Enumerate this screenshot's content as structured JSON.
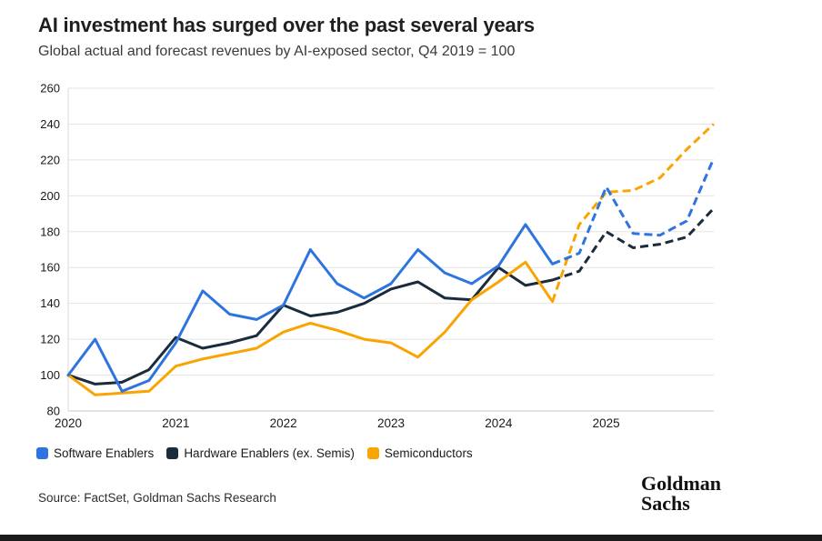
{
  "header": {
    "title": "AI investment has surged over the past several years",
    "subtitle": "Global actual and forecast revenues by AI-exposed sector, Q4 2019 = 100"
  },
  "chart_data": {
    "type": "line",
    "title": "AI investment has surged over the past several years",
    "subtitle": "Global actual and forecast revenues by AI-exposed sector, Q4 2019 = 100",
    "x_labels": [
      "2020 Q1",
      "2020 Q2",
      "2020 Q3",
      "2020 Q4",
      "2021 Q1",
      "2021 Q2",
      "2021 Q3",
      "2021 Q4",
      "2022 Q1",
      "2022 Q2",
      "2022 Q3",
      "2022 Q4",
      "2023 Q1",
      "2023 Q2",
      "2023 Q3",
      "2023 Q4",
      "2024 Q1",
      "2024 Q2",
      "2024 Q3",
      "2024 Q4",
      "2025 Q1",
      "2025 Q2",
      "2025 Q3",
      "2025 Q4",
      "2026 Q1"
    ],
    "x_axis_tick_labels": [
      "2020",
      "2021",
      "2022",
      "2023",
      "2024",
      "2025"
    ],
    "ylim": [
      80,
      260
    ],
    "ytick_step": 20,
    "yticks": [
      80,
      100,
      120,
      140,
      160,
      180,
      200,
      220,
      240,
      260
    ],
    "grid": "horizontal",
    "legend_position": "bottom-left",
    "forecast_start_index": 18,
    "forecast_style": "dashed segments after 2024 Q3 are forecasts",
    "series": [
      {
        "name": "Software Enablers",
        "color": "#2E74E0",
        "values": [
          100,
          120,
          91,
          97,
          118,
          147,
          134,
          131,
          139,
          170,
          151,
          143,
          151,
          170,
          157,
          151,
          161,
          184,
          162,
          168,
          205,
          179,
          178,
          186,
          221
        ]
      },
      {
        "name": "Hardware Enablers (ex. Semis)",
        "color": "#1A2B3C",
        "values": [
          100,
          95,
          96,
          103,
          121,
          115,
          118,
          122,
          139,
          133,
          135,
          140,
          148,
          152,
          143,
          142,
          160,
          150,
          153,
          158,
          180,
          171,
          173,
          177,
          193
        ]
      },
      {
        "name": "Semiconductors",
        "color": "#F9A400",
        "values": [
          100,
          89,
          90,
          91,
          105,
          109,
          112,
          115,
          124,
          129,
          125,
          120,
          118,
          110,
          124,
          142,
          152,
          163,
          141,
          184,
          202,
          203,
          210,
          226,
          240
        ]
      }
    ],
    "axis_colors": {
      "gridline": "#e4e4e4",
      "baseline": "#c9c9c9",
      "tick_label": "#1a1a1a"
    }
  },
  "footer": {
    "source": "Source: FactSet, Goldman Sachs Research",
    "logo_line1": "Goldman",
    "logo_line2": "Sachs"
  }
}
